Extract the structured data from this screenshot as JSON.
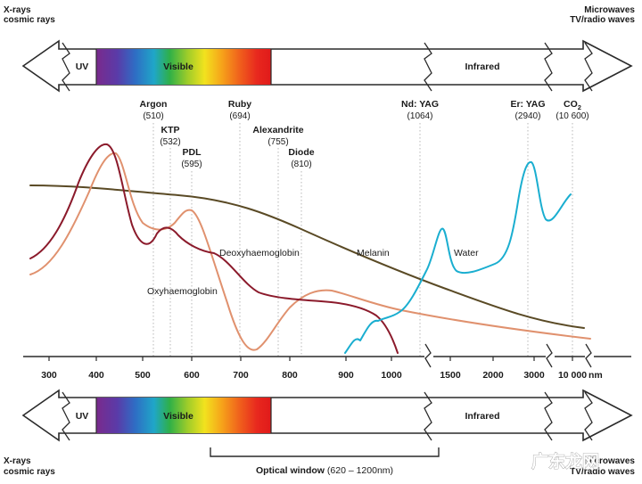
{
  "spectrum_top": {
    "left_label": [
      "X-rays",
      "cosmic rays"
    ],
    "right_label": [
      "Microwaves",
      "TV/radio waves"
    ],
    "bands": {
      "uv": "UV",
      "visible": "Visible",
      "infrared": "Infrared"
    }
  },
  "spectrum_bottom": {
    "left_label": [
      "X-rays",
      "cosmic rays"
    ],
    "right_label": [
      "Microwaves",
      "TV/radio waves"
    ],
    "bands": {
      "uv": "UV",
      "visible": "Visible",
      "infrared": "Infrared"
    }
  },
  "lasers": [
    {
      "name": "Argon",
      "wavelength": "(510)"
    },
    {
      "name": "KTP",
      "wavelength": "(532)"
    },
    {
      "name": "PDL",
      "wavelength": "(595)"
    },
    {
      "name": "Ruby",
      "wavelength": "(694)"
    },
    {
      "name": "Alexandrite",
      "wavelength": "(755)"
    },
    {
      "name": "Diode",
      "wavelength": "(810)"
    },
    {
      "name": "Nd: YAG",
      "wavelength": "(1064)"
    },
    {
      "name": "Er: YAG",
      "wavelength": "(2940)"
    },
    {
      "name": "CO2",
      "wavelength": "(10 600)"
    }
  ],
  "curve_labels": {
    "deoxy": "Deoxyhaemoglobin",
    "oxy": "Oxyhaemoglobin",
    "melanin": "Melanin",
    "water": "Water"
  },
  "axis": {
    "ticks": [
      "300",
      "400",
      "500",
      "600",
      "700",
      "800",
      "900",
      "1000",
      "1500",
      "2000",
      "3000",
      "10 000"
    ],
    "unit": "nm"
  },
  "optical_window": {
    "label": "Optical window",
    "range": "(620 – 1200nm)"
  },
  "watermark": "广东龙网",
  "colors": {
    "deoxy": "#8b1a2b",
    "oxy": "#e0916e",
    "melanin": "#5a4a25",
    "water": "#1aaed0"
  }
}
